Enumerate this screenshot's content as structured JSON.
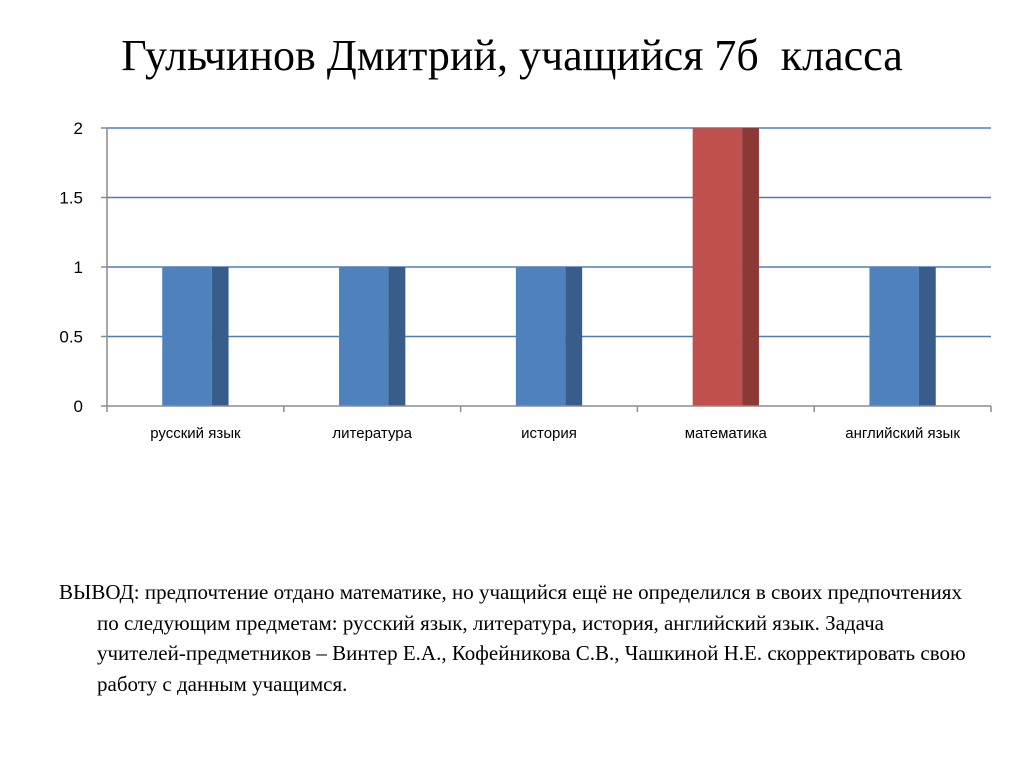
{
  "title": "Гульчинов Дмитрий, учащийся 7б  класса",
  "chart_data": {
    "type": "bar",
    "title": "",
    "xlabel": "",
    "ylabel": "",
    "categories": [
      "русский язык",
      "литература",
      "история",
      "математика",
      "английский язык"
    ],
    "series": [
      {
        "values": [
          1,
          1,
          1,
          2,
          1
        ]
      }
    ],
    "ylim": [
      0,
      2
    ],
    "yticks": [
      "0",
      "0.5",
      "1",
      "1.5",
      "2"
    ],
    "grid": true,
    "legend": "none",
    "bar_colors": [
      "#4F81BD",
      "#4F81BD",
      "#4F81BD",
      "#C0504D",
      "#4F81BD"
    ],
    "bar_side_colors": [
      "#385D8A",
      "#385D8A",
      "#385D8A",
      "#8C3836",
      "#385D8A"
    ],
    "gridline_color": "#4A7EBB"
  },
  "conclusion": "ВЫВОД: предпочтение отдано математике, но учащийся ещё не определился в своих предпочтениях по следующим предметам: русский язык, литература, история, английский язык. Задача учителей-предметников – Винтер Е.А., Кофейникова С.В., Чашкиной Н.Е. скорректировать свою работу с данным учащимся."
}
